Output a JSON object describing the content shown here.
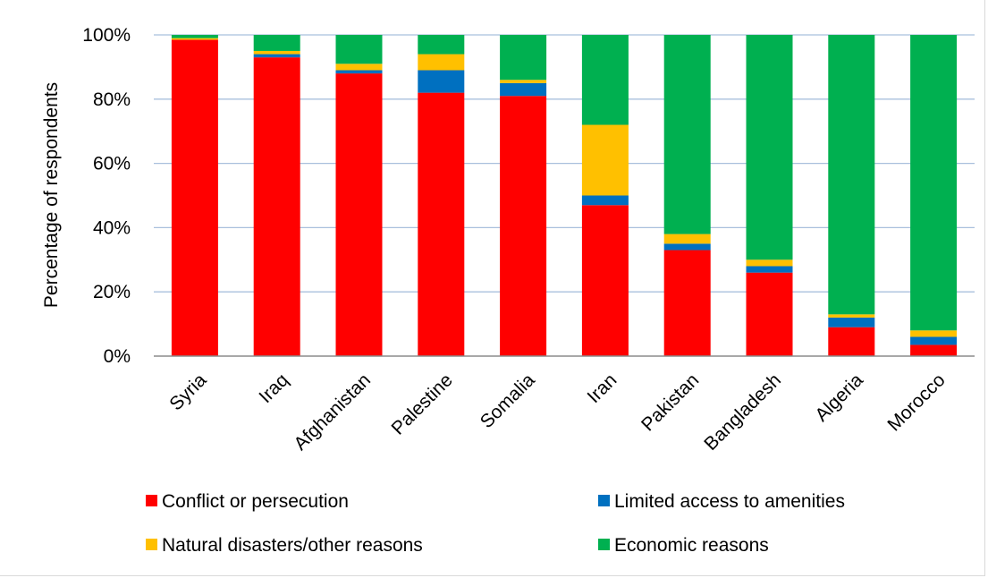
{
  "chart_data": {
    "type": "bar",
    "stacked": true,
    "percent": true,
    "title": "",
    "xlabel": "",
    "ylabel": "Percentage of respondents",
    "ylim": [
      0,
      100
    ],
    "yticks": [
      "0%",
      "20%",
      "40%",
      "60%",
      "80%",
      "100%"
    ],
    "grid": true,
    "legend_position": "bottom",
    "categories": [
      "Syria",
      "Iraq",
      "Afghanistan",
      "Palestine",
      "Somalia",
      "Iran",
      "Pakistan",
      "Bangladesh",
      "Algeria",
      "Morocco"
    ],
    "series": [
      {
        "name": "Conflict or persecution",
        "color": "#ff0000",
        "values": [
          98.5,
          93,
          88,
          82,
          81,
          47,
          33,
          26,
          9,
          3.5
        ]
      },
      {
        "name": "Limited access to amenities",
        "color": "#0070c0",
        "values": [
          0,
          1,
          1,
          7,
          4,
          3,
          2,
          2,
          3,
          2.5
        ]
      },
      {
        "name": "Natural disasters/other reasons",
        "color": "#ffc000",
        "values": [
          0.5,
          1,
          2,
          5,
          1,
          22,
          3,
          2,
          1,
          2
        ]
      },
      {
        "name": "Economic reasons",
        "color": "#00b050",
        "values": [
          1,
          5,
          9,
          6,
          14,
          28,
          62,
          70,
          87,
          92
        ]
      }
    ]
  }
}
